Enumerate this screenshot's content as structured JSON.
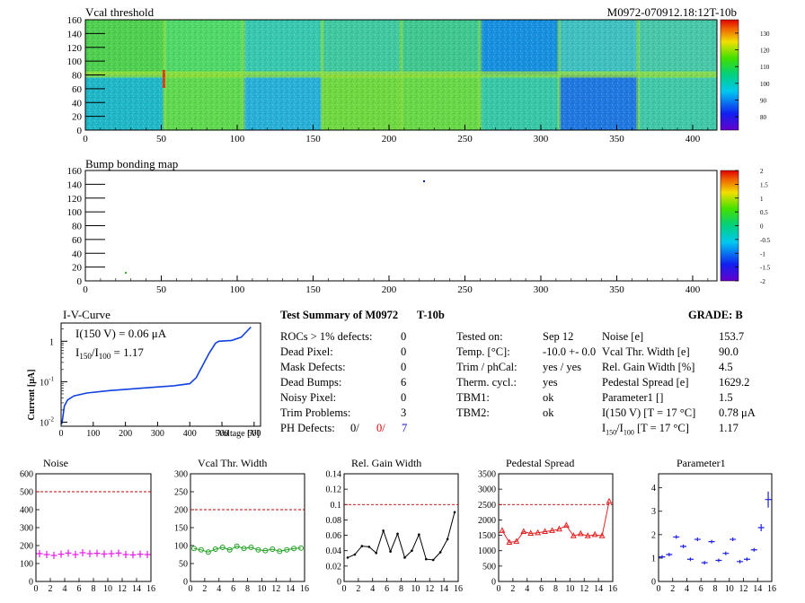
{
  "vcal_map": {
    "title": "Vcal threshold",
    "module_id": "M0972-070912.18:12T-10b",
    "x_ticks": [
      "0",
      "50",
      "100",
      "150",
      "200",
      "250",
      "300",
      "350",
      "400"
    ],
    "y_ticks": [
      "0",
      "20",
      "40",
      "60",
      "80",
      "100",
      "120",
      "140",
      "160"
    ],
    "colorbar_ticks": [
      "80",
      "90",
      "100",
      "110",
      "120",
      "130"
    ]
  },
  "bump_map": {
    "title": "Bump bonding map",
    "x_ticks": [
      "0",
      "50",
      "100",
      "150",
      "200",
      "250",
      "300",
      "350",
      "400"
    ],
    "y_ticks": [
      "0",
      "20",
      "40",
      "60",
      "80",
      "100",
      "120",
      "140",
      "160"
    ],
    "colorbar_ticks": [
      "-2",
      "-1.5",
      "-1",
      "-0.5",
      "0",
      "0.5",
      "1",
      "1.5",
      "2"
    ]
  },
  "iv": {
    "title": "I-V-Curve",
    "ylabel": "Current [μA]",
    "xlabel": "Voltage [V]",
    "note1": "I(150 V) = 0.06 μA",
    "note2_a": "I",
    "note2_sub1": "150",
    "note2_b": "/I",
    "note2_sub2": "100",
    "note2_c": " =  1.17",
    "x_ticks": [
      "0",
      "100",
      "200",
      "300",
      "400",
      "500",
      "600"
    ],
    "y_ticks": [
      "10",
      "10",
      "1"
    ],
    "y_exps": [
      "-2",
      "-1",
      ""
    ]
  },
  "summary": {
    "header": "Test Summary of M0972",
    "tbm": "T-10b",
    "grade": "GRADE:  B",
    "left_labels": [
      "ROCs > 1% defects:",
      "Dead Pixel:",
      "Mask Defects:",
      "Dead Bumps:",
      "Noisy Pixel:",
      "Trim Problems:"
    ],
    "left_values": [
      "0",
      "0",
      "0",
      "6",
      "0",
      "3"
    ],
    "ph_label": "PH Defects:",
    "ph_v1": "0/",
    "ph_v2": "0/",
    "ph_v3": "7",
    "mid_labels": [
      "Tested on:",
      "Temp. [°C]:",
      "Trim / phCal:",
      "Therm. cycl.:",
      "TBM1:",
      "TBM2:"
    ],
    "mid_values": [
      "Sep 12",
      "-10.0 +- 0.0",
      "yes / yes",
      "yes",
      "ok",
      "ok"
    ],
    "right_labels": [
      "Noise [e]",
      "Vcal Thr. Width [e]",
      "Rel. Gain Width [%]",
      "Pedestal Spread [e]",
      "Parameter1 []",
      "I(150 V) [T = 17 °C]"
    ],
    "right_values": [
      "153.7",
      "90.0",
      "4.5",
      "1629.2",
      "1.5",
      "0.78 μA"
    ],
    "ratio_label_a": "I",
    "ratio_sub1": "150",
    "ratio_label_b": "/I",
    "ratio_sub2": "100",
    "ratio_label_c": "  [T = 17 °C]",
    "ratio_value": "1.17"
  },
  "colors": {
    "noise": "#e020e0",
    "vcal_width": "#20a020",
    "gain": "#000000",
    "pedestal": "#e02020",
    "param1": "#2020e0",
    "limit": "#c00000",
    "ph_red": "#e00000",
    "ph_blue": "#1010d0",
    "iv_curve": "#1040e0"
  },
  "chart_data": [
    {
      "type": "scatter",
      "title": "Noise",
      "x_ticks": [
        "0",
        "2",
        "4",
        "6",
        "8",
        "10",
        "12",
        "14",
        "16"
      ],
      "y_ticks": [
        "0",
        "100",
        "200",
        "300",
        "400",
        "500",
        "600"
      ],
      "xlim": [
        0,
        16
      ],
      "ylim": [
        0,
        600
      ],
      "limit_line": 500,
      "x": [
        0,
        1,
        2,
        3,
        4,
        5,
        6,
        7,
        8,
        9,
        10,
        11,
        12,
        13,
        14,
        15
      ],
      "values": [
        155,
        150,
        145,
        152,
        158,
        150,
        160,
        155,
        157,
        153,
        155,
        158,
        150,
        148,
        152,
        150
      ],
      "color_key": "noise",
      "marker": "plus",
      "connected": false
    },
    {
      "type": "line",
      "title": "Vcal Thr. Width",
      "x_ticks": [
        "0",
        "2",
        "4",
        "6",
        "8",
        "10",
        "12",
        "14",
        "16"
      ],
      "y_ticks": [
        "0",
        "50",
        "100",
        "150",
        "200",
        "250",
        "300"
      ],
      "xlim": [
        0,
        16
      ],
      "ylim": [
        0,
        300
      ],
      "limit_line": 200,
      "x": [
        0,
        1,
        2,
        3,
        4,
        5,
        6,
        7,
        8,
        9,
        10,
        11,
        12,
        13,
        14,
        15
      ],
      "values": [
        92,
        88,
        82,
        90,
        95,
        88,
        98,
        92,
        95,
        88,
        86,
        90,
        84,
        88,
        92,
        93
      ],
      "color_key": "vcal_width",
      "marker": "circle",
      "connected": true
    },
    {
      "type": "line",
      "title": "Rel. Gain Width",
      "x_ticks": [
        "0",
        "2",
        "4",
        "6",
        "8",
        "10",
        "12",
        "14",
        "16"
      ],
      "y_ticks": [
        "0",
        "0.02",
        "0.04",
        "0.06",
        "0.08",
        "0.1",
        "0.12",
        "0.14"
      ],
      "xlim": [
        0,
        16
      ],
      "ylim": [
        0,
        0.14
      ],
      "limit_line": 0.1,
      "x": [
        0,
        1,
        2,
        3,
        4,
        5,
        6,
        7,
        8,
        9,
        10,
        11,
        12,
        13,
        14,
        15
      ],
      "values": [
        0.031,
        0.035,
        0.046,
        0.045,
        0.037,
        0.066,
        0.039,
        0.062,
        0.031,
        0.04,
        0.061,
        0.029,
        0.028,
        0.038,
        0.055,
        0.09
      ],
      "color_key": "gain",
      "marker": "dot",
      "connected": true
    },
    {
      "type": "line",
      "title": "Pedestal Spread",
      "x_ticks": [
        "0",
        "2",
        "4",
        "6",
        "8",
        "10",
        "12",
        "14",
        "16"
      ],
      "y_ticks": [
        "0",
        "500",
        "1000",
        "1500",
        "2000",
        "2500",
        "3000",
        "3500"
      ],
      "xlim": [
        0,
        16
      ],
      "ylim": [
        0,
        3500
      ],
      "limit_line": 2500,
      "x": [
        0,
        1,
        2,
        3,
        4,
        5,
        6,
        7,
        8,
        9,
        10,
        11,
        12,
        13,
        14,
        15
      ],
      "values": [
        1650,
        1270,
        1300,
        1620,
        1560,
        1580,
        1620,
        1650,
        1700,
        1820,
        1480,
        1550,
        1480,
        1520,
        1480,
        2600
      ],
      "color_key": "pedestal",
      "marker": "triangle",
      "connected": true
    },
    {
      "type": "scatter",
      "title": "Parameter1",
      "x_ticks": [
        "0",
        "2",
        "4",
        "6",
        "8",
        "10",
        "12",
        "14",
        "16"
      ],
      "y_ticks": [
        "0",
        "1",
        "2",
        "3",
        "4"
      ],
      "xlim": [
        0,
        16
      ],
      "ylim": [
        0,
        4.6
      ],
      "x": [
        0,
        1,
        2,
        3,
        4,
        5,
        6,
        7,
        8,
        9,
        10,
        11,
        12,
        13,
        14,
        15
      ],
      "values": [
        1.05,
        1.15,
        1.9,
        1.5,
        0.95,
        1.8,
        0.8,
        1.7,
        0.9,
        1.2,
        1.8,
        0.85,
        0.95,
        1.35,
        2.3,
        3.5
      ],
      "color_key": "param1",
      "marker": "errplus",
      "connected": false
    }
  ]
}
